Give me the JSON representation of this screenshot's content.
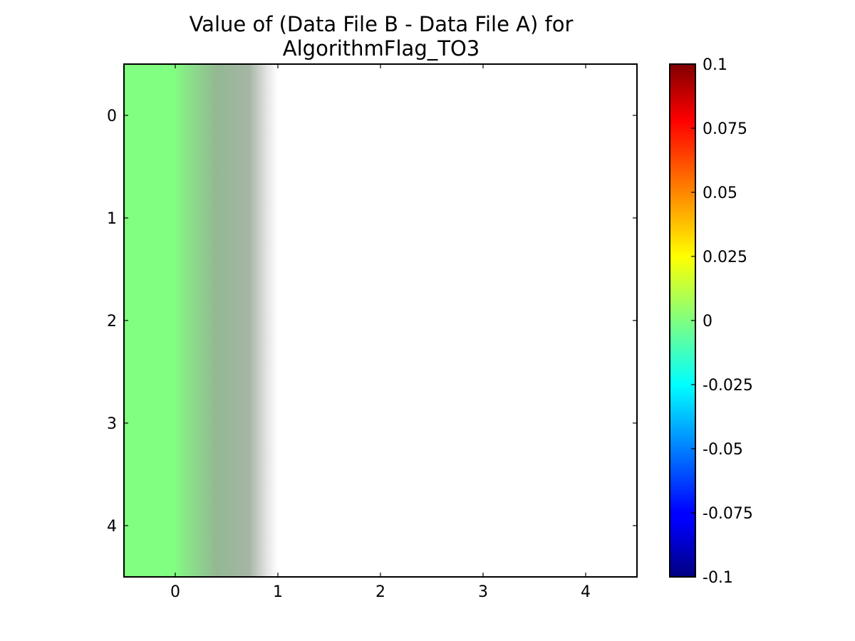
{
  "chart_data": {
    "type": "heatmap",
    "title_line1": "Value of (Data File B - Data File A) for",
    "title_line2": "AlgorithmFlag_TO3",
    "xlabel": "",
    "ylabel": "",
    "x_ticks": [
      "0",
      "1",
      "2",
      "3",
      "4"
    ],
    "y_ticks": [
      "0",
      "1",
      "2",
      "3",
      "4"
    ],
    "xlim": [
      -0.5,
      4.5
    ],
    "ylim": [
      4.5,
      -0.5
    ],
    "grid": false,
    "colormap": "jet",
    "interpolation": "bilinear",
    "color_range": [
      -0.1,
      0.1
    ],
    "colorbar_ticks": [
      "0.1",
      "0.075",
      "0.05",
      "0.025",
      "0",
      "-0.025",
      "-0.05",
      "-0.075",
      "-0.1"
    ],
    "colorbar_tick_values": [
      0.1,
      0.075,
      0.05,
      0.025,
      0,
      -0.025,
      -0.05,
      -0.075,
      -0.1
    ],
    "values": [
      [
        0,
        null,
        null,
        null,
        null
      ],
      [
        0,
        null,
        null,
        null,
        null
      ],
      [
        0,
        null,
        null,
        null,
        null
      ],
      [
        0,
        null,
        null,
        null,
        null
      ],
      [
        0,
        null,
        null,
        null,
        null
      ]
    ],
    "value_color": "#80ff80",
    "missing_color": "#ffffff"
  }
}
